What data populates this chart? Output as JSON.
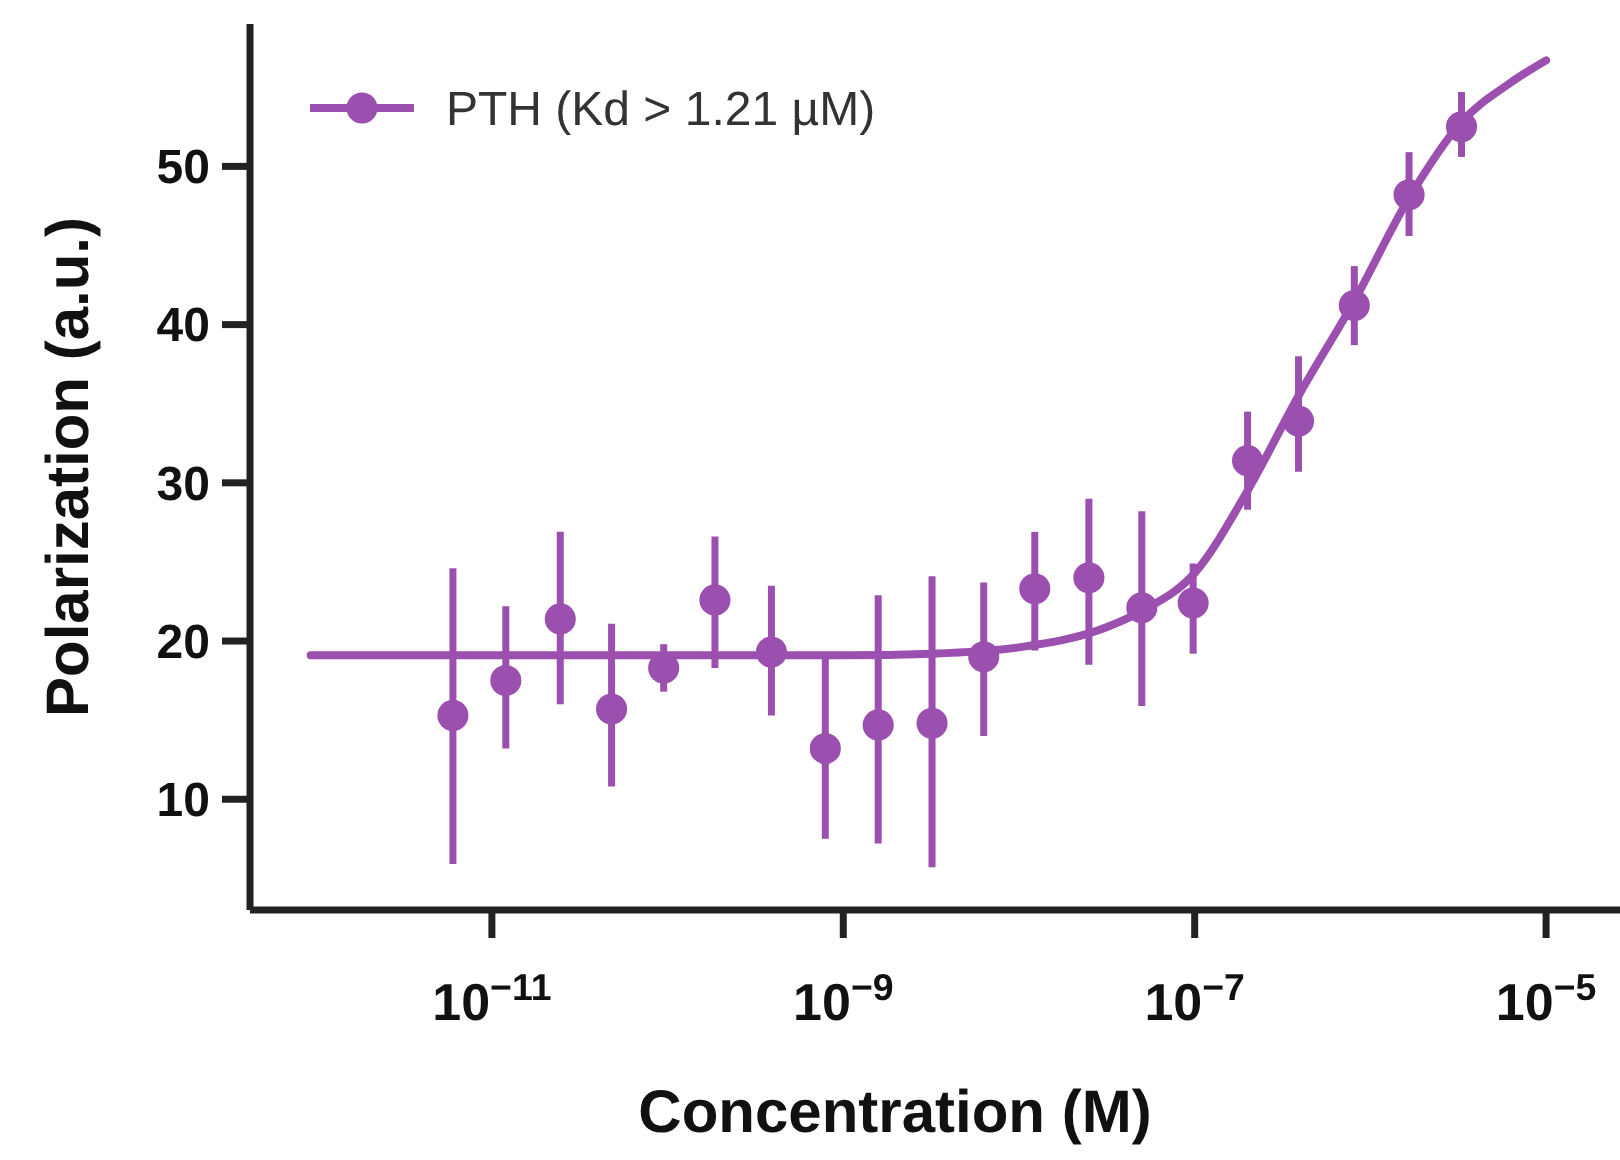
{
  "chart_data": {
    "type": "scatter",
    "xlabel": "Concentration (M)",
    "ylabel": "Polarization (a.u.)",
    "log": "x",
    "xlim": [
      4.2e-13,
      2.5e-05
    ],
    "ylim": [
      3,
      59
    ],
    "xticks": [
      {
        "value": 1e-11,
        "label": "10$^{−11}$"
      },
      {
        "value": 1e-09,
        "label": "10$^{−9}$"
      },
      {
        "value": 1e-07,
        "label": "10$^{−7}$"
      },
      {
        "value": 1e-05,
        "label": "10$^{−5}$"
      }
    ],
    "yticks": [
      10,
      20,
      30,
      40,
      50
    ],
    "grid": false,
    "legend": "top left",
    "series": [
      {
        "name": "PTH (Kd > 1.21 µM)",
        "marker": "circle",
        "color": "#9b4fae",
        "x": [
          6e-12,
          1.2e-11,
          2.45e-11,
          4.8e-11,
          9.5e-11,
          1.86e-10,
          3.9e-10,
          7.9e-10,
          1.58e-09,
          3.2e-09,
          6.3e-09,
          1.23e-08,
          2.5e-08,
          5e-08,
          9.8e-08,
          2e-07,
          3.9e-07,
          8.1e-07,
          1.66e-06,
          3.3e-06
        ],
        "values": [
          15.3,
          17.5,
          21.4,
          15.7,
          18.3,
          22.6,
          19.3,
          13.2,
          14.7,
          14.8,
          19.0,
          23.3,
          24.0,
          22.1,
          22.4,
          31.4,
          33.9,
          41.2,
          48.2,
          52.5
        ],
        "errors": [
          [
            5.9,
            24.6
          ],
          [
            13.2,
            22.2
          ],
          [
            16.0,
            26.9
          ],
          [
            10.8,
            21.1
          ],
          [
            16.8,
            19.8
          ],
          [
            18.3,
            26.6
          ],
          [
            15.3,
            23.5
          ],
          [
            7.5,
            19.0
          ],
          [
            7.2,
            22.9
          ],
          [
            5.7,
            24.1
          ],
          [
            14.0,
            23.7
          ],
          [
            19.4,
            26.9
          ],
          [
            18.5,
            29.0
          ],
          [
            15.9,
            28.2
          ],
          [
            19.2,
            24.9
          ],
          [
            28.3,
            34.5
          ],
          [
            30.7,
            38.0
          ],
          [
            38.7,
            43.7
          ],
          [
            45.6,
            50.9
          ],
          [
            50.6,
            54.7
          ]
        ]
      },
      {
        "type": "line",
        "marker": "none",
        "color": "#9b4fae",
        "x": [
          9.3e-13,
          1e-11,
          1e-10,
          1e-09,
          3.2e-09,
          1e-08,
          3.2e-08,
          5e-08,
          1e-07,
          2e-07,
          3.9e-07,
          8.1e-07,
          1.66e-06,
          3.3e-06,
          6.3e-06,
          1e-05
        ],
        "values": [
          19.1,
          19.1,
          19.1,
          19.1,
          19.2,
          19.6,
          20.9,
          21.9,
          24.3,
          29.5,
          35.5,
          41.5,
          48.0,
          52.8,
          55.3,
          56.7
        ]
      }
    ]
  }
}
